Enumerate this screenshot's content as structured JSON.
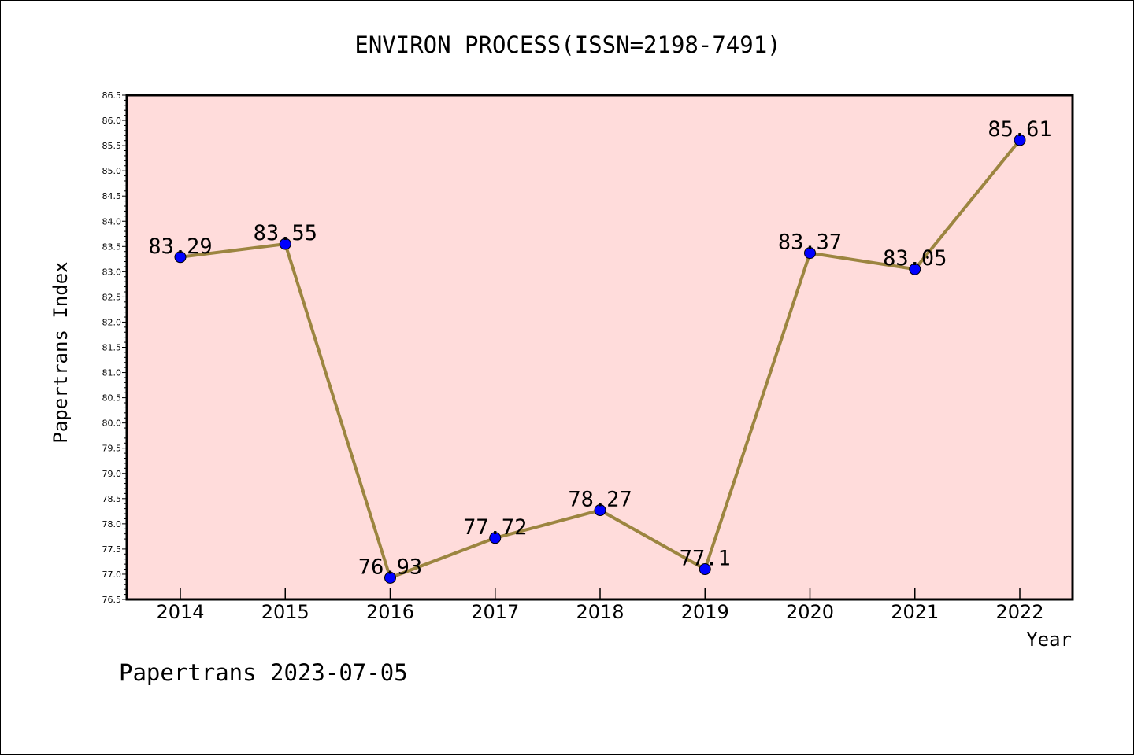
{
  "chart_data": {
    "type": "line",
    "title": "ENVIRON PROCESS(ISSN=2198-7491)",
    "xlabel": "Year",
    "ylabel": "Papertrans Index",
    "x": [
      "2014",
      "2015",
      "2016",
      "2017",
      "2018",
      "2019",
      "2020",
      "2021",
      "2022"
    ],
    "series": [
      {
        "values": [
          83.29,
          83.55,
          76.93,
          77.72,
          78.27,
          77.1,
          83.37,
          83.05,
          85.61
        ],
        "labels": [
          "83.29",
          "83.55",
          "76.93",
          "77.72",
          "78.27",
          "77.1",
          "83.37",
          "83.05",
          "85.61"
        ]
      }
    ],
    "ylim": [
      76.5,
      86.5
    ],
    "yticks": [
      "76.5",
      "77.0",
      "77.5",
      "78.0",
      "78.5",
      "79.0",
      "79.5",
      "80.0",
      "80.5",
      "81.0",
      "81.5",
      "82.0",
      "82.5",
      "83.0",
      "83.5",
      "84.0",
      "84.5",
      "85.0",
      "85.5",
      "86.0",
      "86.5"
    ],
    "grid": false,
    "legend": "none",
    "colors": {
      "plot_background": "#ffdcdb",
      "line": "#9c8540",
      "marker": "#0000ff",
      "axis": "#000000"
    }
  },
  "footer": {
    "watermark": "Papertrans 2023-07-05"
  }
}
